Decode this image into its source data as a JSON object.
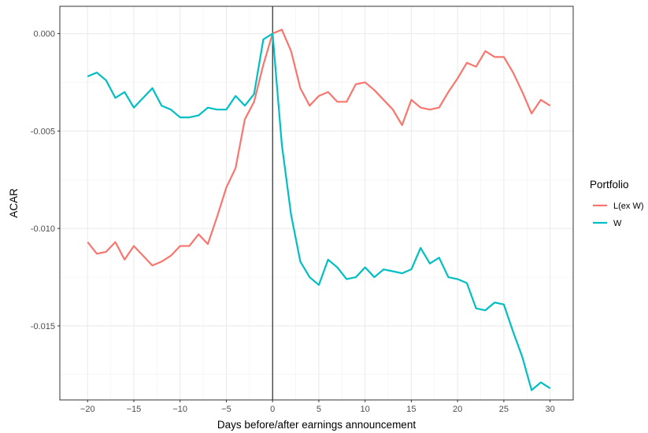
{
  "chart_data": {
    "type": "line",
    "title": "",
    "xlabel": "Days before/after earnings announcement",
    "ylabel": "ACAR",
    "xlim": [
      -23,
      32.5
    ],
    "ylim": [
      -0.0188,
      0.0014
    ],
    "x_ticks": [
      -20,
      -15,
      -10,
      -5,
      0,
      5,
      10,
      15,
      20,
      25,
      30
    ],
    "x_tick_labels": [
      "−20",
      "−15",
      "−10",
      "−5",
      "0",
      "5",
      "10",
      "15",
      "20",
      "25",
      "30"
    ],
    "y_ticks": [
      0.0,
      -0.005,
      -0.01,
      -0.015
    ],
    "y_tick_labels": [
      "0.000",
      "-0.005",
      "-0.010",
      "-0.015"
    ],
    "grid": true,
    "vline_x": 0,
    "legend": {
      "title": "Portfolio",
      "position": "right"
    },
    "x": [
      -20,
      -19,
      -18,
      -17,
      -16,
      -15,
      -14,
      -13,
      -12,
      -11,
      -10,
      -9,
      -8,
      -7,
      -6,
      -5,
      -4,
      -3,
      -2,
      -1,
      0,
      1,
      2,
      3,
      4,
      5,
      6,
      7,
      8,
      9,
      10,
      11,
      12,
      13,
      14,
      15,
      16,
      17,
      18,
      19,
      20,
      21,
      22,
      23,
      24,
      25,
      26,
      27,
      28,
      29,
      30
    ],
    "series": [
      {
        "name": "L(ex W)",
        "color": "#F8766D",
        "values": [
          -0.0107,
          -0.0113,
          -0.0112,
          -0.0107,
          -0.0116,
          -0.0109,
          -0.0114,
          -0.0119,
          -0.0117,
          -0.0114,
          -0.0109,
          -0.0109,
          -0.0103,
          -0.0108,
          -0.0094,
          -0.0079,
          -0.0069,
          -0.0044,
          -0.0035,
          -0.0016,
          0.0,
          0.0002,
          -0.0009,
          -0.0028,
          -0.0037,
          -0.0032,
          -0.003,
          -0.0035,
          -0.0035,
          -0.0026,
          -0.0025,
          -0.0029,
          -0.0034,
          -0.0039,
          -0.0047,
          -0.0034,
          -0.0038,
          -0.0039,
          -0.0038,
          -0.003,
          -0.0023,
          -0.0015,
          -0.0017,
          -0.0009,
          -0.0012,
          -0.0012,
          -0.002,
          -0.003,
          -0.0041,
          -0.0034,
          -0.0037
        ]
      },
      {
        "name": "W",
        "color": "#00BFC4",
        "values": [
          -0.0022,
          -0.002,
          -0.0024,
          -0.0033,
          -0.003,
          -0.0038,
          -0.0033,
          -0.0028,
          -0.0037,
          -0.0039,
          -0.0043,
          -0.0043,
          -0.0042,
          -0.0038,
          -0.0039,
          -0.0039,
          -0.0032,
          -0.0037,
          -0.0031,
          -0.0003,
          0.0,
          -0.0057,
          -0.0093,
          -0.0117,
          -0.0125,
          -0.0129,
          -0.0116,
          -0.012,
          -0.0126,
          -0.0125,
          -0.012,
          -0.0125,
          -0.0121,
          -0.0122,
          -0.0123,
          -0.0121,
          -0.011,
          -0.0118,
          -0.0115,
          -0.0125,
          -0.0126,
          -0.0128,
          -0.0141,
          -0.0142,
          -0.0138,
          -0.0139,
          -0.0153,
          -0.0166,
          -0.0183,
          -0.0179,
          -0.0182
        ]
      }
    ]
  }
}
